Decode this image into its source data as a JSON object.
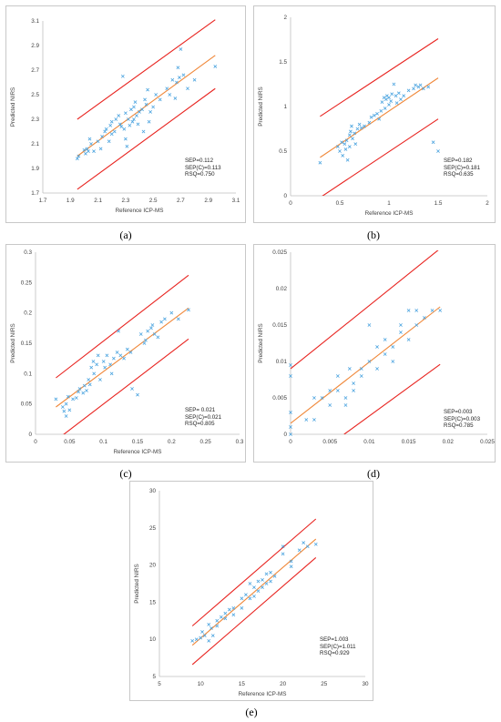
{
  "colors": {
    "line_red": "#e8231f",
    "line_orange": "#f0883a",
    "point_blue": "#4aa3df",
    "frame": "#c8c8c8"
  },
  "chart_data": [
    {
      "type": "scatter",
      "caption": "(a)",
      "xlabel": "Reference ICP-MS",
      "ylabel": "Predicted NIRS",
      "xlim": [
        1.7,
        3.1
      ],
      "ylim": [
        1.7,
        3.1
      ],
      "xticks": [
        "1.7",
        "1.9",
        "2.1",
        "2.3",
        "2.5",
        "2.7",
        "2.9",
        "3.1"
      ],
      "yticks": [
        "1.7",
        "1.9",
        "2.1",
        "2.3",
        "2.5",
        "2.7",
        "2.9",
        "3.1"
      ],
      "xtick_values": [
        1.7,
        1.9,
        2.1,
        2.3,
        2.5,
        2.7,
        2.9,
        3.1
      ],
      "ytick_values": [
        1.7,
        1.9,
        2.1,
        2.3,
        2.5,
        2.7,
        2.9,
        3.1
      ],
      "stats": [
        "SEP=0.112",
        "SEP(C)=0.113",
        "RSQ=0.750"
      ],
      "fit_line": [
        [
          1.95,
          2.0
        ],
        [
          2.95,
          2.82
        ]
      ],
      "upper_line": [
        [
          1.95,
          2.3
        ],
        [
          2.95,
          3.11
        ]
      ],
      "lower_line": [
        [
          1.95,
          1.73
        ],
        [
          2.95,
          2.55
        ]
      ],
      "points": [
        [
          1.95,
          1.98
        ],
        [
          1.96,
          2.0
        ],
        [
          2.0,
          2.05
        ],
        [
          2.01,
          2.02
        ],
        [
          2.02,
          2.06
        ],
        [
          2.03,
          2.04
        ],
        [
          2.05,
          2.1
        ],
        [
          2.04,
          2.14
        ],
        [
          2.07,
          2.04
        ],
        [
          2.1,
          2.12
        ],
        [
          2.12,
          2.06
        ],
        [
          2.13,
          2.16
        ],
        [
          2.15,
          2.2
        ],
        [
          2.16,
          2.22
        ],
        [
          2.18,
          2.12
        ],
        [
          2.19,
          2.25
        ],
        [
          2.2,
          2.28
        ],
        [
          2.2,
          2.18
        ],
        [
          2.22,
          2.2
        ],
        [
          2.23,
          2.3
        ],
        [
          2.25,
          2.33
        ],
        [
          2.26,
          2.26
        ],
        [
          2.27,
          2.24
        ],
        [
          2.28,
          2.65
        ],
        [
          2.29,
          2.22
        ],
        [
          2.3,
          2.35
        ],
        [
          2.3,
          2.14
        ],
        [
          2.31,
          2.08
        ],
        [
          2.32,
          2.3
        ],
        [
          2.33,
          2.25
        ],
        [
          2.34,
          2.38
        ],
        [
          2.35,
          2.28
        ],
        [
          2.36,
          2.4
        ],
        [
          2.36,
          2.3
        ],
        [
          2.37,
          2.44
        ],
        [
          2.38,
          2.33
        ],
        [
          2.39,
          2.26
        ],
        [
          2.4,
          2.36
        ],
        [
          2.42,
          2.38
        ],
        [
          2.43,
          2.2
        ],
        [
          2.44,
          2.46
        ],
        [
          2.45,
          2.42
        ],
        [
          2.46,
          2.54
        ],
        [
          2.47,
          2.28
        ],
        [
          2.48,
          2.36
        ],
        [
          2.5,
          2.4
        ],
        [
          2.52,
          2.5
        ],
        [
          2.55,
          2.46
        ],
        [
          2.6,
          2.55
        ],
        [
          2.62,
          2.5
        ],
        [
          2.64,
          2.62
        ],
        [
          2.66,
          2.47
        ],
        [
          2.67,
          2.6
        ],
        [
          2.68,
          2.72
        ],
        [
          2.69,
          2.64
        ],
        [
          2.7,
          2.87
        ],
        [
          2.72,
          2.66
        ],
        [
          2.75,
          2.55
        ],
        [
          2.8,
          2.62
        ],
        [
          2.95,
          2.73
        ]
      ]
    },
    {
      "type": "scatter",
      "caption": "(b)",
      "xlabel": "Reference ICP-MS",
      "ylabel": "Predicted NIRS",
      "xlim": [
        0,
        2
      ],
      "ylim": [
        0,
        2
      ],
      "xticks": [
        "0",
        "0.5",
        "1",
        "1.5",
        "2"
      ],
      "yticks": [
        "0",
        "0.5",
        "1",
        "1.5",
        "2"
      ],
      "xtick_values": [
        0,
        0.5,
        1,
        1.5,
        2
      ],
      "ytick_values": [
        0,
        0.5,
        1,
        1.5,
        2
      ],
      "stats": [
        "SEP=0.182",
        "SEP(C)=0.181",
        "RSQ=0.635"
      ],
      "fit_line": [
        [
          0.3,
          0.43
        ],
        [
          1.5,
          1.32
        ]
      ],
      "upper_line": [
        [
          0.3,
          0.89
        ],
        [
          1.5,
          1.76
        ]
      ],
      "lower_line": [
        [
          0.3,
          -0.02
        ],
        [
          1.5,
          0.86
        ]
      ],
      "points": [
        [
          0.3,
          0.37
        ],
        [
          0.48,
          0.55
        ],
        [
          0.5,
          0.5
        ],
        [
          0.52,
          0.6
        ],
        [
          0.53,
          0.45
        ],
        [
          0.55,
          0.58
        ],
        [
          0.56,
          0.52
        ],
        [
          0.57,
          0.62
        ],
        [
          0.58,
          0.4
        ],
        [
          0.6,
          0.55
        ],
        [
          0.6,
          0.68
        ],
        [
          0.61,
          0.72
        ],
        [
          0.62,
          0.78
        ],
        [
          0.63,
          0.64
        ],
        [
          0.65,
          0.7
        ],
        [
          0.66,
          0.58
        ],
        [
          0.68,
          0.75
        ],
        [
          0.7,
          0.8
        ],
        [
          0.72,
          0.76
        ],
        [
          0.75,
          0.78
        ],
        [
          0.8,
          0.82
        ],
        [
          0.82,
          0.88
        ],
        [
          0.85,
          0.9
        ],
        [
          0.88,
          0.92
        ],
        [
          0.9,
          0.86
        ],
        [
          0.92,
          0.95
        ],
        [
          0.93,
          1.05
        ],
        [
          0.95,
          1.1
        ],
        [
          0.96,
          0.98
        ],
        [
          0.97,
          1.08
        ],
        [
          0.98,
          1.12
        ],
        [
          1.0,
          1.02
        ],
        [
          1.0,
          1.1
        ],
        [
          1.02,
          1.06
        ],
        [
          1.03,
          1.14
        ],
        [
          1.05,
          1.25
        ],
        [
          1.07,
          1.12
        ],
        [
          1.08,
          1.04
        ],
        [
          1.1,
          1.15
        ],
        [
          1.12,
          1.08
        ],
        [
          1.15,
          1.12
        ],
        [
          1.2,
          1.18
        ],
        [
          1.25,
          1.2
        ],
        [
          1.27,
          1.24
        ],
        [
          1.3,
          1.22
        ],
        [
          1.32,
          1.24
        ],
        [
          1.35,
          1.2
        ],
        [
          1.4,
          1.22
        ],
        [
          1.45,
          0.6
        ],
        [
          1.5,
          0.5
        ]
      ]
    },
    {
      "type": "scatter",
      "caption": "(c)",
      "xlabel": "Reference ICP-MS",
      "ylabel": "Predicted NIRS",
      "xlim": [
        0,
        0.3
      ],
      "ylim": [
        0,
        0.3
      ],
      "xticks": [
        "0",
        "0.05",
        "0.1",
        "0.15",
        "0.2",
        "0.25",
        "0.3"
      ],
      "yticks": [
        "0",
        "0.05",
        "0.1",
        "0.15",
        "0.2",
        "0.25",
        "0.3"
      ],
      "xtick_values": [
        0,
        0.05,
        0.1,
        0.15,
        0.2,
        0.25,
        0.3
      ],
      "ytick_values": [
        0,
        0.05,
        0.1,
        0.15,
        0.2,
        0.25,
        0.3
      ],
      "stats": [
        "SEP= 0.021",
        "SEP(C)=0.021",
        "RSQ=0.805"
      ],
      "fit_line": [
        [
          0.03,
          0.045
        ],
        [
          0.225,
          0.208
        ]
      ],
      "upper_line": [
        [
          0.03,
          0.093
        ],
        [
          0.225,
          0.262
        ]
      ],
      "lower_line": [
        [
          0.03,
          -0.01
        ],
        [
          0.225,
          0.157
        ]
      ],
      "points": [
        [
          0.03,
          0.058
        ],
        [
          0.04,
          0.045
        ],
        [
          0.042,
          0.038
        ],
        [
          0.045,
          0.05
        ],
        [
          0.045,
          0.03
        ],
        [
          0.048,
          0.062
        ],
        [
          0.05,
          0.04
        ],
        [
          0.055,
          0.058
        ],
        [
          0.06,
          0.06
        ],
        [
          0.063,
          0.07
        ],
        [
          0.065,
          0.075
        ],
        [
          0.07,
          0.068
        ],
        [
          0.072,
          0.08
        ],
        [
          0.075,
          0.072
        ],
        [
          0.078,
          0.09
        ],
        [
          0.08,
          0.082
        ],
        [
          0.082,
          0.11
        ],
        [
          0.085,
          0.12
        ],
        [
          0.086,
          0.1
        ],
        [
          0.09,
          0.115
        ],
        [
          0.092,
          0.13
        ],
        [
          0.095,
          0.09
        ],
        [
          0.1,
          0.12
        ],
        [
          0.102,
          0.11
        ],
        [
          0.105,
          0.13
        ],
        [
          0.11,
          0.115
        ],
        [
          0.112,
          0.1
        ],
        [
          0.115,
          0.125
        ],
        [
          0.12,
          0.135
        ],
        [
          0.122,
          0.17
        ],
        [
          0.125,
          0.13
        ],
        [
          0.13,
          0.125
        ],
        [
          0.135,
          0.14
        ],
        [
          0.14,
          0.135
        ],
        [
          0.142,
          0.075
        ],
        [
          0.15,
          0.065
        ],
        [
          0.155,
          0.165
        ],
        [
          0.16,
          0.15
        ],
        [
          0.162,
          0.155
        ],
        [
          0.165,
          0.17
        ],
        [
          0.17,
          0.175
        ],
        [
          0.172,
          0.18
        ],
        [
          0.175,
          0.165
        ],
        [
          0.18,
          0.16
        ],
        [
          0.185,
          0.185
        ],
        [
          0.19,
          0.19
        ],
        [
          0.2,
          0.2
        ],
        [
          0.21,
          0.19
        ],
        [
          0.225,
          0.205
        ]
      ]
    },
    {
      "type": "scatter",
      "caption": "(d)",
      "xlabel": "",
      "ylabel": "Predicted NIRS",
      "xlim": [
        0,
        0.025
      ],
      "ylim": [
        0,
        0.025
      ],
      "xticks": [
        "0",
        "0.005",
        "0.01",
        "0.015",
        "0.02",
        "0.025"
      ],
      "yticks": [
        "0",
        "0.005",
        "0.01",
        "0.015",
        "0.02",
        "0.025"
      ],
      "xtick_values": [
        0,
        0.005,
        0.01,
        0.015,
        0.02,
        0.025
      ],
      "ytick_values": [
        0,
        0.005,
        0.01,
        0.015,
        0.02,
        0.025
      ],
      "stats": [
        "SEP=0.003",
        "SEP(C)=0.003",
        "RSQ=0.785"
      ],
      "fit_line": [
        [
          0,
          0.0015
        ],
        [
          0.019,
          0.0175
        ]
      ],
      "upper_line": [
        [
          0,
          0.009
        ],
        [
          0.019,
          0.0255
        ]
      ],
      "lower_line": [
        [
          0.0068,
          0
        ],
        [
          0.019,
          0.0096
        ]
      ],
      "points": [
        [
          0,
          0
        ],
        [
          0,
          0.001
        ],
        [
          0,
          0.003
        ],
        [
          0,
          0.008
        ],
        [
          0,
          0.0095
        ],
        [
          0.002,
          0.002
        ],
        [
          0.003,
          0.002
        ],
        [
          0.003,
          0.005
        ],
        [
          0.004,
          0.005
        ],
        [
          0.005,
          0.006
        ],
        [
          0.005,
          0.004
        ],
        [
          0.006,
          0.008
        ],
        [
          0.006,
          0.006
        ],
        [
          0.007,
          0.005
        ],
        [
          0.007,
          0.004
        ],
        [
          0.0075,
          0.009
        ],
        [
          0.008,
          0.007
        ],
        [
          0.008,
          0.006
        ],
        [
          0.009,
          0.009
        ],
        [
          0.009,
          0.008
        ],
        [
          0.01,
          0.015
        ],
        [
          0.01,
          0.01
        ],
        [
          0.011,
          0.009
        ],
        [
          0.011,
          0.012
        ],
        [
          0.012,
          0.013
        ],
        [
          0.012,
          0.011
        ],
        [
          0.013,
          0.012
        ],
        [
          0.013,
          0.01
        ],
        [
          0.014,
          0.015
        ],
        [
          0.014,
          0.014
        ],
        [
          0.015,
          0.017
        ],
        [
          0.015,
          0.013
        ],
        [
          0.016,
          0.015
        ],
        [
          0.016,
          0.017
        ],
        [
          0.017,
          0.016
        ],
        [
          0.018,
          0.017
        ],
        [
          0.019,
          0.017
        ]
      ]
    },
    {
      "type": "scatter",
      "caption": "(e)",
      "xlabel": "Reference ICP-MS",
      "ylabel": "Predicted NIRS",
      "xlim": [
        5,
        30
      ],
      "ylim": [
        5,
        30
      ],
      "xticks": [
        "5",
        "10",
        "15",
        "20",
        "25",
        "30"
      ],
      "yticks": [
        "5",
        "10",
        "15",
        "20",
        "25",
        "30"
      ],
      "xtick_values": [
        5,
        10,
        15,
        20,
        25,
        30
      ],
      "ytick_values": [
        5,
        10,
        15,
        20,
        25,
        30
      ],
      "stats": [
        "SEP=1.003",
        "SEP(C)=1.011",
        "RSQ=0.929"
      ],
      "fit_line": [
        [
          9,
          9.2
        ],
        [
          24,
          23.5
        ]
      ],
      "upper_line": [
        [
          9,
          11.8
        ],
        [
          24,
          26.2
        ]
      ],
      "lower_line": [
        [
          9,
          6.6
        ],
        [
          24,
          21.0
        ]
      ],
      "points": [
        [
          9,
          9.8
        ],
        [
          9.5,
          10
        ],
        [
          10,
          10.2
        ],
        [
          10.2,
          11
        ],
        [
          10.5,
          10.5
        ],
        [
          11,
          9.8
        ],
        [
          11,
          12
        ],
        [
          11.3,
          11.5
        ],
        [
          11.5,
          10.5
        ],
        [
          12,
          12.5
        ],
        [
          12,
          11.8
        ],
        [
          12.5,
          13
        ],
        [
          13,
          13.5
        ],
        [
          13,
          12.8
        ],
        [
          13.5,
          14
        ],
        [
          14,
          14.2
        ],
        [
          14,
          13.3
        ],
        [
          15,
          15.5
        ],
        [
          15,
          14.2
        ],
        [
          15.5,
          16
        ],
        [
          16,
          17.5
        ],
        [
          16,
          15.5
        ],
        [
          16.5,
          17
        ],
        [
          16.5,
          15.8
        ],
        [
          17,
          17.8
        ],
        [
          17,
          16.5
        ],
        [
          17.5,
          18
        ],
        [
          17.5,
          17
        ],
        [
          18,
          17.5
        ],
        [
          18,
          18.8
        ],
        [
          18.5,
          19
        ],
        [
          18.5,
          17.8
        ],
        [
          19,
          18.5
        ],
        [
          20,
          21.5
        ],
        [
          20,
          22.5
        ],
        [
          21,
          20.5
        ],
        [
          21,
          19.8
        ],
        [
          22,
          22
        ],
        [
          22.5,
          23
        ],
        [
          23,
          22.5
        ],
        [
          24,
          22.8
        ]
      ]
    }
  ]
}
